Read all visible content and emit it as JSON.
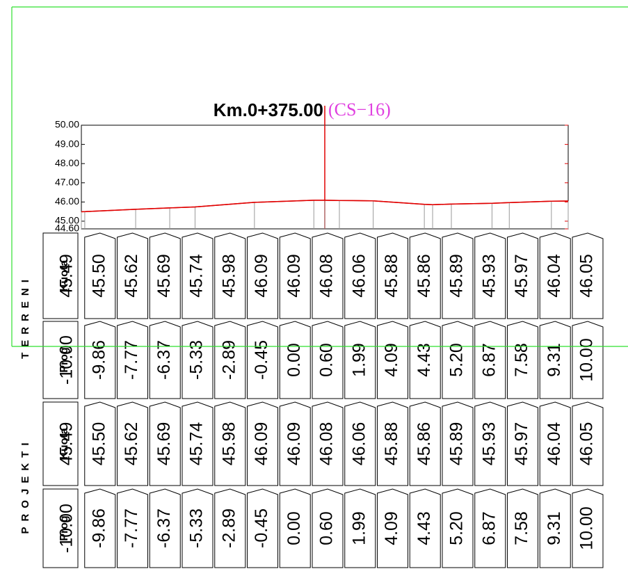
{
  "chart_data": {
    "type": "line",
    "title": "Km.0+375.00",
    "subtitle": "(CS−16)",
    "xlim": [
      -10,
      10
    ],
    "ylim": [
      44.6,
      50
    ],
    "yticks": [
      {
        "value": 50,
        "label": "50.00"
      },
      {
        "value": 49,
        "label": "49.00"
      },
      {
        "value": 48,
        "label": "48.00"
      },
      {
        "value": 47,
        "label": "47.00"
      },
      {
        "value": 46,
        "label": "46.00"
      },
      {
        "value": 45,
        "label": "45.00"
      },
      {
        "value": 44.6,
        "label": "44.60"
      }
    ],
    "xticks": [
      {
        "value": -10,
        "label": "-10.00"
      },
      {
        "value": -9.86,
        "label": "-9.86"
      },
      {
        "value": -7.77,
        "label": "-7.77"
      },
      {
        "value": -6.37,
        "label": "-6.37"
      },
      {
        "value": -5.33,
        "label": "-5.33"
      },
      {
        "value": -2.89,
        "label": "-2.89"
      },
      {
        "value": -0.45,
        "label": "-0.45"
      },
      {
        "value": 0,
        "label": "0.00"
      },
      {
        "value": 0.6,
        "label": "0.60"
      },
      {
        "value": 1.99,
        "label": "1.99"
      },
      {
        "value": 4.09,
        "label": "4.09"
      },
      {
        "value": 4.43,
        "label": "4.43"
      },
      {
        "value": 5.2,
        "label": "5.20"
      },
      {
        "value": 6.87,
        "label": "6.87"
      },
      {
        "value": 7.58,
        "label": "7.58"
      },
      {
        "value": 9.31,
        "label": "9.31"
      },
      {
        "value": 10,
        "label": "10.00"
      }
    ],
    "row_labels": [
      "Kuota",
      "Prog"
    ],
    "series": [
      {
        "name": "TERRENI",
        "color": "#e00000",
        "values": [
          45.49,
          45.5,
          45.62,
          45.69,
          45.74,
          45.98,
          46.09,
          46.09,
          46.08,
          46.06,
          45.88,
          45.86,
          45.89,
          45.93,
          45.97,
          46.04,
          46.05
        ],
        "value_labels": [
          "45.49",
          "45.50",
          "45.62",
          "45.69",
          "45.74",
          "45.98",
          "46.09",
          "46.09",
          "46.08",
          "46.06",
          "45.88",
          "45.86",
          "45.89",
          "45.93",
          "45.97",
          "46.04",
          "46.05"
        ]
      },
      {
        "name": "PROJEKTI",
        "color": "#e00000",
        "values": [
          45.49,
          45.5,
          45.62,
          45.69,
          45.74,
          45.98,
          46.09,
          46.09,
          46.08,
          46.06,
          45.88,
          45.86,
          45.89,
          45.93,
          45.97,
          46.04,
          46.05
        ],
        "value_labels": [
          "45.49",
          "45.50",
          "45.62",
          "45.69",
          "45.74",
          "45.98",
          "46.09",
          "46.09",
          "46.08",
          "46.06",
          "45.88",
          "45.86",
          "45.89",
          "45.93",
          "45.97",
          "46.04",
          "46.05"
        ]
      }
    ]
  }
}
